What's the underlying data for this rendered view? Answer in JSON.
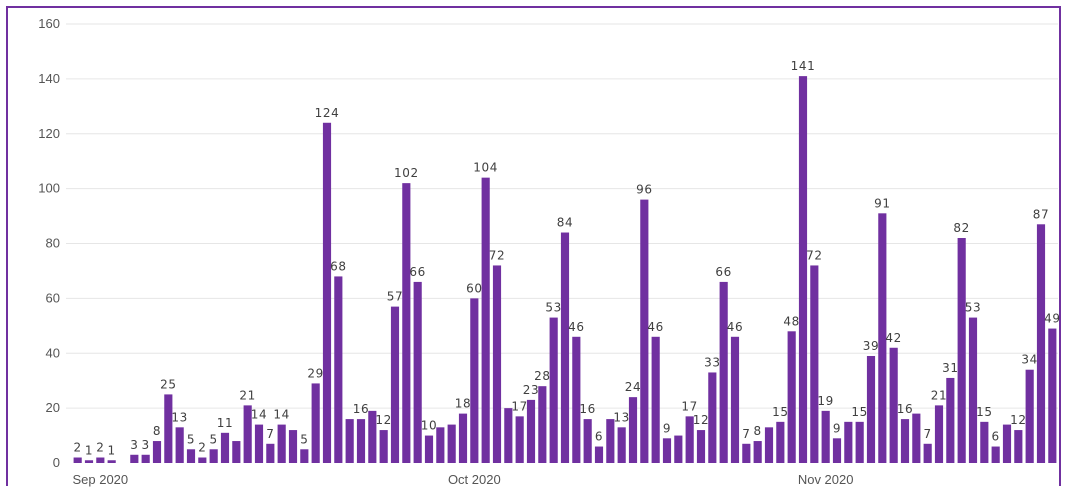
{
  "chart_data": {
    "type": "bar",
    "title": "",
    "xlabel": "",
    "ylabel": "",
    "ylim": [
      0,
      160
    ],
    "y_ticks": [
      0,
      20,
      40,
      60,
      80,
      100,
      120,
      140,
      160
    ],
    "grid": true,
    "legend": "none",
    "bar_color": "#7030a0",
    "x_tick_labels": [
      {
        "label": "Sep 2020",
        "index": 2
      },
      {
        "label": "Oct 2020",
        "index": 35
      },
      {
        "label": "Nov 2020",
        "index": 66
      }
    ],
    "values": [
      2,
      1,
      2,
      1,
      null,
      3,
      3,
      8,
      25,
      13,
      5,
      2,
      5,
      11,
      8,
      21,
      14,
      7,
      14,
      12,
      5,
      29,
      124,
      68,
      16,
      16,
      19,
      12,
      57,
      102,
      66,
      10,
      13,
      14,
      18,
      60,
      104,
      72,
      20,
      17,
      23,
      28,
      53,
      84,
      46,
      16,
      6,
      16,
      13,
      24,
      96,
      46,
      9,
      10,
      17,
      12,
      33,
      66,
      46,
      7,
      8,
      13,
      15,
      48,
      141,
      72,
      19,
      9,
      15,
      15,
      39,
      91,
      42,
      16,
      18,
      7,
      21,
      31,
      82,
      53,
      15,
      6,
      14,
      12,
      34,
      87,
      49
    ],
    "data_labels": [
      "2",
      "1",
      "2",
      "1",
      "",
      "3",
      "3",
      "8",
      "25",
      "13",
      "5",
      "2",
      "5",
      "11",
      "",
      "21",
      "14",
      "7",
      "14",
      "",
      "5",
      "29",
      "124",
      "68",
      "",
      "16",
      "",
      "12",
      "57",
      "102",
      "66",
      "10",
      "",
      "",
      "18",
      "60",
      "104",
      "72",
      "",
      "17",
      "23",
      "28",
      "53",
      "84",
      "46",
      "16",
      "6",
      "",
      "13",
      "24",
      "96",
      "46",
      "9",
      "",
      "17",
      "12",
      "33",
      "66",
      "46",
      "7",
      "8",
      "",
      "15",
      "48",
      "141",
      "72",
      "19",
      "9",
      "",
      "15",
      "39",
      "91",
      "42",
      "16",
      "",
      "7",
      "21",
      "31",
      "82",
      "53",
      "15",
      "6",
      "",
      "12",
      "34",
      "87",
      "49"
    ]
  }
}
